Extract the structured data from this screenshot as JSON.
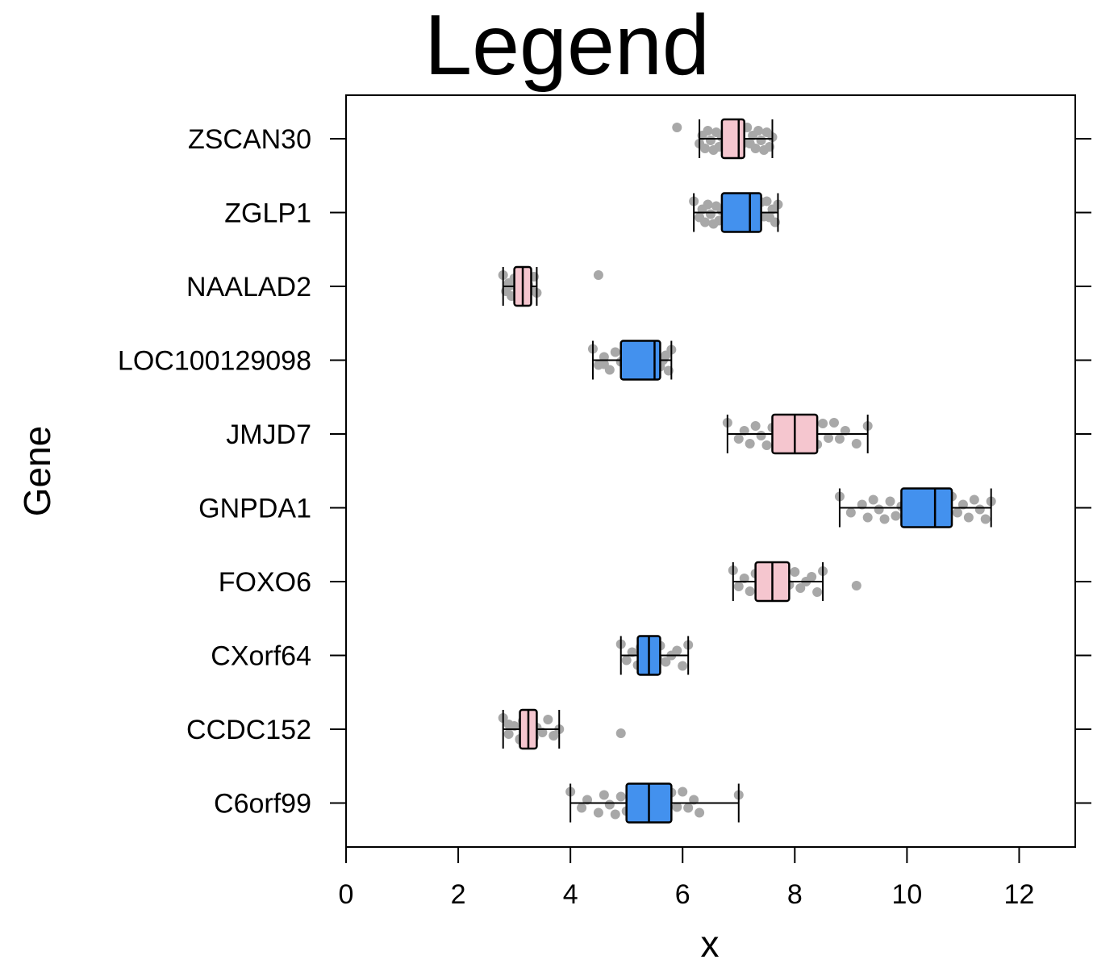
{
  "chart_data": {
    "type": "box",
    "title": "Legend",
    "xlabel": "x",
    "ylabel": "Gene",
    "xlim": [
      0,
      13
    ],
    "x_ticks": [
      "0",
      "2",
      "4",
      "6",
      "8",
      "10",
      "12"
    ],
    "orientation": "horizontal",
    "colors": {
      "pink": "#f5c6cf",
      "blue": "#4391ee",
      "points": "#a8a8a8",
      "line": "#000000"
    },
    "categories": [
      "ZSCAN30",
      "ZGLP1",
      "NAALAD2",
      "LOC100129098",
      "JMJD7",
      "GNPDA1",
      "FOXO6",
      "CXorf64",
      "CCDC152",
      "C6orf99"
    ],
    "boxes": [
      {
        "gene": "ZSCAN30",
        "color": "pink",
        "whisker_low": 6.3,
        "q1": 6.7,
        "median": 7.0,
        "q3": 7.1,
        "whisker_high": 7.6,
        "points": [
          5.9,
          6.3,
          6.35,
          6.4,
          6.45,
          6.5,
          6.55,
          6.6,
          6.65,
          6.7,
          6.75,
          6.8,
          6.85,
          6.9,
          6.95,
          7.0,
          7.05,
          7.1,
          7.15,
          7.2,
          7.25,
          7.3,
          7.35,
          7.4,
          7.45,
          7.5,
          7.55,
          7.6
        ]
      },
      {
        "gene": "ZGLP1",
        "color": "blue",
        "whisker_low": 6.2,
        "q1": 6.7,
        "median": 7.2,
        "q3": 7.4,
        "whisker_high": 7.7,
        "points": [
          6.2,
          6.3,
          6.35,
          6.4,
          6.45,
          6.5,
          6.55,
          6.6,
          6.65,
          6.7,
          6.8,
          6.9,
          7.0,
          7.1,
          7.2,
          7.3,
          7.4,
          7.45,
          7.5,
          7.55,
          7.6,
          7.65,
          7.7
        ]
      },
      {
        "gene": "NAALAD2",
        "color": "pink",
        "whisker_low": 2.8,
        "q1": 3.0,
        "median": 3.15,
        "q3": 3.3,
        "whisker_high": 3.4,
        "points": [
          2.8,
          2.85,
          2.9,
          2.95,
          3.0,
          3.05,
          3.1,
          3.15,
          3.2,
          3.25,
          3.3,
          3.35,
          3.4,
          2.9,
          3.0,
          3.1,
          3.2,
          3.3,
          4.5
        ]
      },
      {
        "gene": "LOC100129098",
        "color": "blue",
        "whisker_low": 4.4,
        "q1": 4.9,
        "median": 5.5,
        "q3": 5.6,
        "whisker_high": 5.8,
        "points": [
          4.4,
          4.5,
          4.6,
          4.7,
          4.8,
          4.9,
          5.0,
          5.1,
          5.2,
          5.3,
          5.4,
          5.5,
          5.6,
          5.65,
          5.7,
          5.75,
          5.8,
          4.6,
          5.0,
          5.4
        ]
      },
      {
        "gene": "JMJD7",
        "color": "pink",
        "whisker_low": 6.8,
        "q1": 7.6,
        "median": 8.0,
        "q3": 8.4,
        "whisker_high": 9.3,
        "points": [
          6.8,
          7.0,
          7.1,
          7.2,
          7.3,
          7.4,
          7.5,
          7.6,
          7.7,
          7.8,
          7.9,
          8.0,
          8.1,
          8.2,
          8.3,
          8.4,
          8.5,
          8.6,
          8.7,
          8.8,
          8.9,
          9.1,
          9.3
        ]
      },
      {
        "gene": "GNPDA1",
        "color": "blue",
        "whisker_low": 8.8,
        "q1": 9.9,
        "median": 10.5,
        "q3": 10.8,
        "whisker_high": 11.5,
        "points": [
          8.8,
          9.0,
          9.2,
          9.3,
          9.4,
          9.5,
          9.6,
          9.7,
          9.8,
          9.9,
          10.0,
          10.1,
          10.2,
          10.3,
          10.4,
          10.5,
          10.6,
          10.7,
          10.8,
          10.9,
          11.0,
          11.1,
          11.2,
          11.3,
          11.4,
          11.5
        ]
      },
      {
        "gene": "FOXO6",
        "color": "pink",
        "whisker_low": 6.9,
        "q1": 7.3,
        "median": 7.6,
        "q3": 7.9,
        "whisker_high": 8.5,
        "points": [
          6.9,
          7.0,
          7.1,
          7.2,
          7.3,
          7.4,
          7.5,
          7.6,
          7.7,
          7.8,
          7.9,
          8.0,
          8.1,
          8.2,
          8.3,
          8.4,
          8.5,
          9.1
        ]
      },
      {
        "gene": "CXorf64",
        "color": "blue",
        "whisker_low": 4.9,
        "q1": 5.2,
        "median": 5.4,
        "q3": 5.6,
        "whisker_high": 6.1,
        "points": [
          4.9,
          5.0,
          5.1,
          5.2,
          5.25,
          5.3,
          5.35,
          5.4,
          5.45,
          5.5,
          5.55,
          5.6,
          5.7,
          5.8,
          5.9,
          6.0,
          6.1
        ]
      },
      {
        "gene": "CCDC152",
        "color": "pink",
        "whisker_low": 2.8,
        "q1": 3.1,
        "median": 3.25,
        "q3": 3.4,
        "whisker_high": 3.8,
        "points": [
          2.8,
          2.9,
          3.0,
          3.1,
          3.15,
          3.2,
          3.25,
          3.3,
          3.35,
          3.4,
          3.5,
          3.6,
          3.7,
          3.8,
          2.9,
          3.1,
          3.3,
          4.9
        ]
      },
      {
        "gene": "C6orf99",
        "color": "blue",
        "whisker_low": 4.0,
        "q1": 5.0,
        "median": 5.4,
        "q3": 5.8,
        "whisker_high": 7.0,
        "points": [
          4.0,
          4.2,
          4.3,
          4.5,
          4.6,
          4.7,
          4.8,
          4.9,
          5.0,
          5.1,
          5.2,
          5.3,
          5.4,
          5.5,
          5.6,
          5.7,
          5.8,
          5.9,
          6.0,
          6.1,
          6.2,
          6.3,
          7.0
        ]
      }
    ]
  }
}
